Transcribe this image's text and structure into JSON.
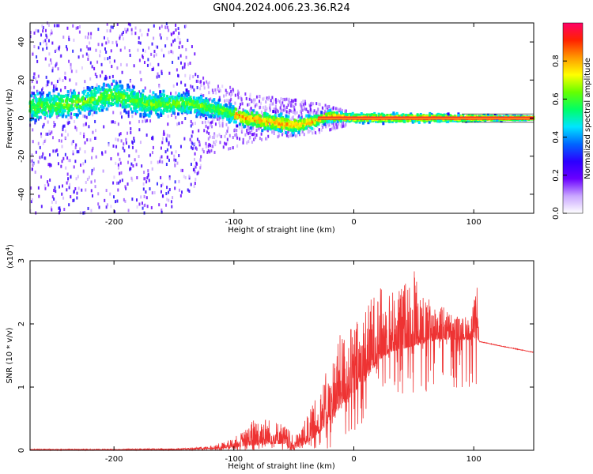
{
  "title": "GN04.2024.006.23.36.R24",
  "chart_data": [
    {
      "type": "heatmap",
      "xlabel": "Height of straight line (km)",
      "ylabel": "Frequency (Hz)",
      "xlim": [
        -270,
        150
      ],
      "ylim": [
        -50,
        50
      ],
      "x_ticks": [
        -200,
        -100,
        0,
        100
      ],
      "y_ticks": [
        -40,
        -20,
        0,
        20,
        40
      ],
      "colorbar": {
        "label": "Normalized spectral amplitude",
        "range": [
          0,
          1
        ],
        "ticks": [
          0.0,
          0.2,
          0.4,
          0.6,
          0.8
        ],
        "colors": [
          "#ffffff",
          "#c9a6ff",
          "#6a00ff",
          "#2b00ff",
          "#0066ff",
          "#00e5ff",
          "#00ff66",
          "#66ff00",
          "#ffff00",
          "#ff9900",
          "#ff2200",
          "#ff0066"
        ]
      },
      "description_band": {
        "center_hz": [
          [
            -260,
            6
          ],
          [
            -230,
            8
          ],
          [
            -200,
            12
          ],
          [
            -170,
            7
          ],
          [
            -140,
            8
          ],
          [
            -110,
            4
          ],
          [
            -90,
            0
          ],
          [
            -70,
            -2
          ],
          [
            -50,
            -4
          ],
          [
            -35,
            -2
          ],
          [
            -20,
            1
          ],
          [
            0,
            0
          ],
          [
            50,
            0
          ],
          [
            100,
            0
          ],
          [
            150,
            0
          ]
        ],
        "half_width_hz": [
          [
            -260,
            10
          ],
          [
            -200,
            10
          ],
          [
            -150,
            8
          ],
          [
            -120,
            7
          ],
          [
            -90,
            6
          ],
          [
            -60,
            6
          ],
          [
            -40,
            5
          ],
          [
            -25,
            4
          ],
          [
            0,
            3
          ],
          [
            50,
            3
          ],
          [
            100,
            2
          ],
          [
            150,
            1
          ]
        ],
        "scatter_extent_hz": [
          [
            -270,
            50
          ],
          [
            -140,
            50
          ],
          [
            -125,
            20
          ],
          [
            -80,
            12
          ],
          [
            -30,
            8
          ],
          [
            0,
            3
          ]
        ]
      }
    },
    {
      "type": "line",
      "series_color": "#ee3333",
      "xlabel": "Height of straight line (km)",
      "ylabel": "SNR (10 * v/v)",
      "y_multiplier": "(x10",
      "y_multiplier_exp": "4",
      "y_multiplier_close": ")",
      "xlim": [
        -270,
        150
      ],
      "ylim": [
        0,
        3
      ],
      "x_ticks": [
        -200,
        -100,
        0,
        100
      ],
      "y_ticks": [
        0,
        1,
        2,
        3
      ],
      "envelope": {
        "x": [
          -270,
          -200,
          -150,
          -125,
          -110,
          -100,
          -90,
          -80,
          -70,
          -60,
          -55,
          -50,
          -40,
          -30,
          -20,
          -10,
          0,
          10,
          20,
          30,
          40,
          50,
          60,
          70,
          80,
          90,
          98,
          103,
          105,
          120,
          150
        ],
        "base": [
          0.01,
          0.01,
          0.01,
          0.02,
          0.03,
          0.05,
          0.07,
          0.08,
          0.1,
          0.1,
          0.05,
          0.02,
          0.1,
          0.25,
          0.45,
          0.7,
          0.9,
          1.1,
          1.4,
          1.55,
          1.6,
          1.65,
          1.7,
          1.75,
          1.75,
          1.75,
          1.75,
          1.78,
          1.72,
          1.66,
          1.55
        ],
        "peak": [
          0.02,
          0.02,
          0.03,
          0.05,
          0.12,
          0.2,
          0.35,
          0.6,
          0.5,
          0.45,
          0.35,
          0.2,
          0.5,
          0.9,
          1.4,
          1.9,
          2.0,
          2.3,
          2.6,
          2.55,
          2.6,
          3.0,
          2.4,
          2.4,
          2.2,
          2.1,
          2.2,
          2.6,
          1.74,
          1.67,
          1.56
        ]
      }
    }
  ]
}
